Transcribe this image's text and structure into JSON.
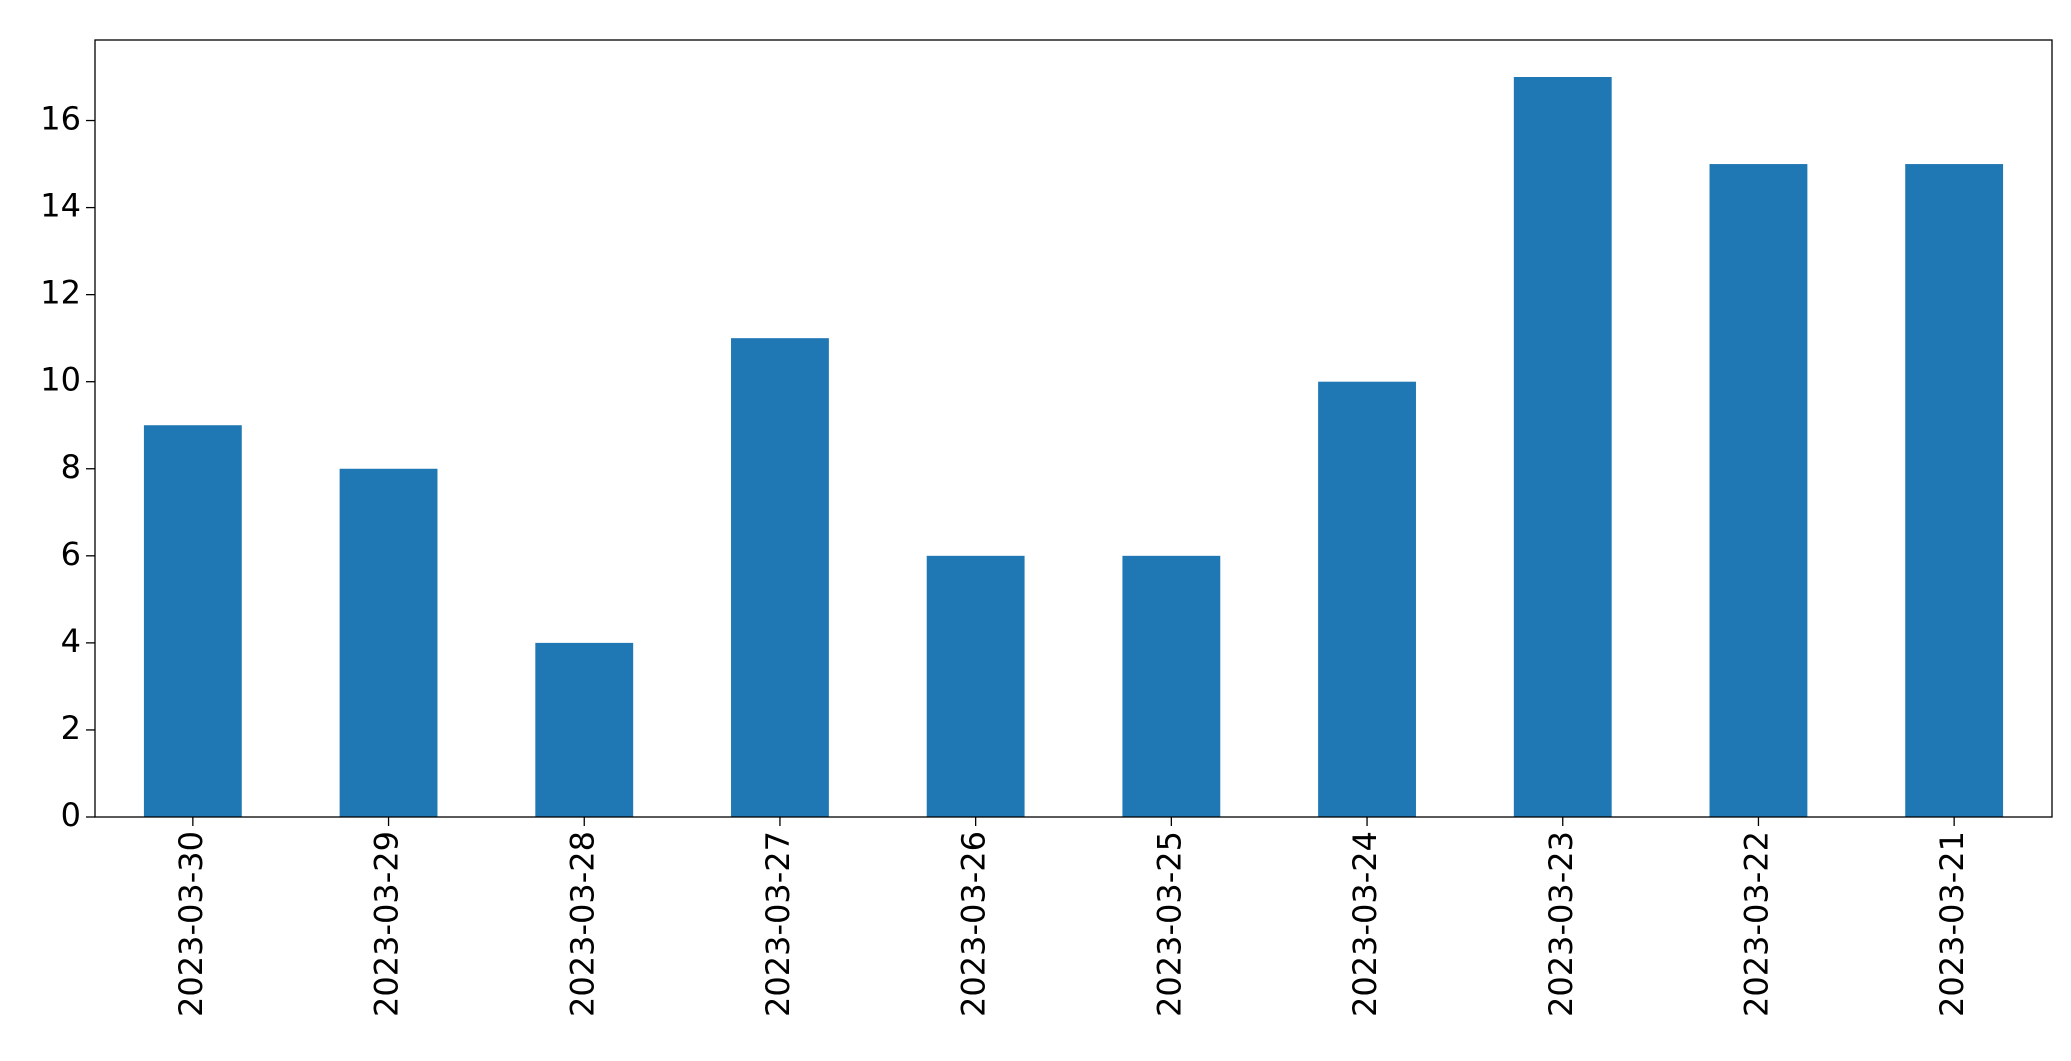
{
  "chart_data": {
    "type": "bar",
    "categories": [
      "2023-03-30",
      "2023-03-29",
      "2023-03-28",
      "2023-03-27",
      "2023-03-26",
      "2023-03-25",
      "2023-03-24",
      "2023-03-23",
      "2023-03-22",
      "2023-03-21"
    ],
    "values": [
      9,
      8,
      4,
      11,
      6,
      6,
      10,
      17,
      15,
      15
    ],
    "color": "#1f77b4",
    "ylim": [
      0,
      17.85
    ],
    "yticks": [
      0,
      2,
      4,
      6,
      8,
      10,
      12,
      14,
      16
    ],
    "grid": false
  }
}
